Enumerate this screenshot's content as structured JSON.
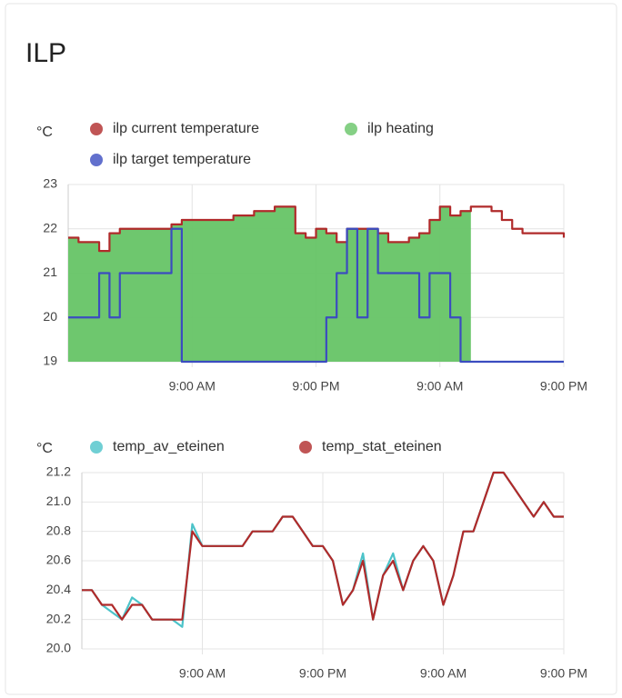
{
  "title": "ILP",
  "chart_data": [
    {
      "type": "line",
      "step": true,
      "unit": "°C",
      "grid": true,
      "x": [
        0,
        1,
        2,
        3,
        4,
        5,
        6,
        7,
        8,
        9,
        10,
        11,
        12,
        13,
        14,
        15,
        16,
        17,
        18,
        19,
        20,
        21,
        22,
        23,
        24,
        25,
        26,
        27,
        28,
        29,
        30,
        31,
        32,
        33,
        34,
        35,
        36,
        37,
        38,
        39,
        40,
        41,
        42,
        43,
        44,
        45,
        46,
        47,
        48
      ],
      "xlim": [
        0,
        48
      ],
      "xticks": [
        {
          "value": 12,
          "label": "9:00 AM"
        },
        {
          "value": 24,
          "label": "9:00 PM"
        },
        {
          "value": 36,
          "label": "9:00 AM"
        },
        {
          "value": 48,
          "label": "9:00 PM"
        }
      ],
      "ylim": [
        19,
        23
      ],
      "yticks": [
        19,
        20,
        21,
        22,
        23
      ],
      "series": [
        {
          "name": "ilp current temperature",
          "color": "#b02a2a",
          "values": [
            21.8,
            21.7,
            21.7,
            21.5,
            21.9,
            22.0,
            22.0,
            22.0,
            22.0,
            22.0,
            22.1,
            22.2,
            22.2,
            22.2,
            22.2,
            22.2,
            22.3,
            22.3,
            22.4,
            22.4,
            22.5,
            22.5,
            21.9,
            21.8,
            22.0,
            21.9,
            21.7,
            22.0,
            22.0,
            22.0,
            21.9,
            21.7,
            21.7,
            21.8,
            21.9,
            22.2,
            22.5,
            22.3,
            22.4,
            22.5,
            22.5,
            22.4,
            22.2,
            22.0,
            21.9,
            21.9,
            21.9,
            21.9,
            21.8
          ]
        },
        {
          "name": "ilp heating",
          "color": "#66c466",
          "fill": true,
          "values": [
            21.8,
            21.7,
            21.7,
            21.5,
            21.9,
            22.0,
            22.0,
            22.0,
            22.0,
            22.0,
            22.1,
            22.2,
            22.2,
            22.2,
            22.2,
            22.2,
            22.3,
            22.3,
            22.4,
            22.4,
            22.5,
            22.5,
            21.9,
            21.8,
            22.0,
            21.9,
            21.7,
            22.0,
            22.0,
            22.0,
            21.9,
            21.7,
            21.7,
            21.8,
            21.9,
            22.2,
            22.5,
            22.3,
            22.4,
            null,
            null,
            null,
            null,
            null,
            null,
            null,
            null,
            null,
            null
          ]
        },
        {
          "name": "ilp target temperature",
          "color": "#3b4cc0",
          "values": [
            20,
            20,
            20,
            21,
            20,
            21,
            21,
            21,
            21,
            21,
            22,
            19,
            19,
            19,
            19,
            19,
            19,
            19,
            19,
            19,
            19,
            19,
            19,
            19,
            19,
            20,
            21,
            22,
            20,
            22,
            21,
            21,
            21,
            21,
            20,
            21,
            21,
            20,
            19,
            19,
            19,
            19,
            19,
            19,
            19,
            19,
            19,
            19,
            19
          ]
        }
      ]
    },
    {
      "type": "line",
      "step": false,
      "unit": "°C",
      "grid": true,
      "x": [
        0,
        1,
        2,
        3,
        4,
        5,
        6,
        7,
        8,
        9,
        10,
        11,
        12,
        13,
        14,
        15,
        16,
        17,
        18,
        19,
        20,
        21,
        22,
        23,
        24,
        25,
        26,
        27,
        28,
        29,
        30,
        31,
        32,
        33,
        34,
        35,
        36,
        37,
        38,
        39,
        40,
        41,
        42,
        43,
        44,
        45,
        46,
        47,
        48
      ],
      "xlim": [
        0,
        48
      ],
      "xticks": [
        {
          "value": 12,
          "label": "9:00 AM"
        },
        {
          "value": 24,
          "label": "9:00 PM"
        },
        {
          "value": 36,
          "label": "9:00 AM"
        },
        {
          "value": 48,
          "label": "9:00 PM"
        }
      ],
      "ylim": [
        20,
        21.2
      ],
      "yticks": [
        {
          "value": 20,
          "label": "20.0"
        },
        20.2,
        20.4,
        20.6,
        20.8,
        {
          "value": 21,
          "label": "21.0"
        },
        21.2
      ],
      "series": [
        {
          "name": "temp_av_eteinen",
          "color": "#4cc3c9",
          "values": [
            20.4,
            20.4,
            20.3,
            20.25,
            20.2,
            20.35,
            20.3,
            20.2,
            20.2,
            20.2,
            20.15,
            20.85,
            20.7,
            20.7,
            20.7,
            20.7,
            20.7,
            20.8,
            20.8,
            20.8,
            20.9,
            20.9,
            20.8,
            20.7,
            20.7,
            20.6,
            20.3,
            20.4,
            20.65,
            20.2,
            20.5,
            20.65,
            20.4,
            20.6,
            20.7,
            20.6,
            20.3,
            20.5,
            20.8,
            20.8,
            21.0,
            21.2,
            21.2,
            21.1,
            21.0,
            20.9,
            21.0,
            20.9,
            20.9
          ]
        },
        {
          "name": "temp_stat_eteinen",
          "color": "#b02a2a",
          "values": [
            20.4,
            20.4,
            20.3,
            20.3,
            20.2,
            20.3,
            20.3,
            20.2,
            20.2,
            20.2,
            20.2,
            20.8,
            20.7,
            20.7,
            20.7,
            20.7,
            20.7,
            20.8,
            20.8,
            20.8,
            20.9,
            20.9,
            20.8,
            20.7,
            20.7,
            20.6,
            20.3,
            20.4,
            20.6,
            20.2,
            20.5,
            20.6,
            20.4,
            20.6,
            20.7,
            20.6,
            20.3,
            20.5,
            20.8,
            20.8,
            21.0,
            21.2,
            21.2,
            21.1,
            21.0,
            20.9,
            21.0,
            20.9,
            20.9
          ]
        }
      ]
    }
  ]
}
